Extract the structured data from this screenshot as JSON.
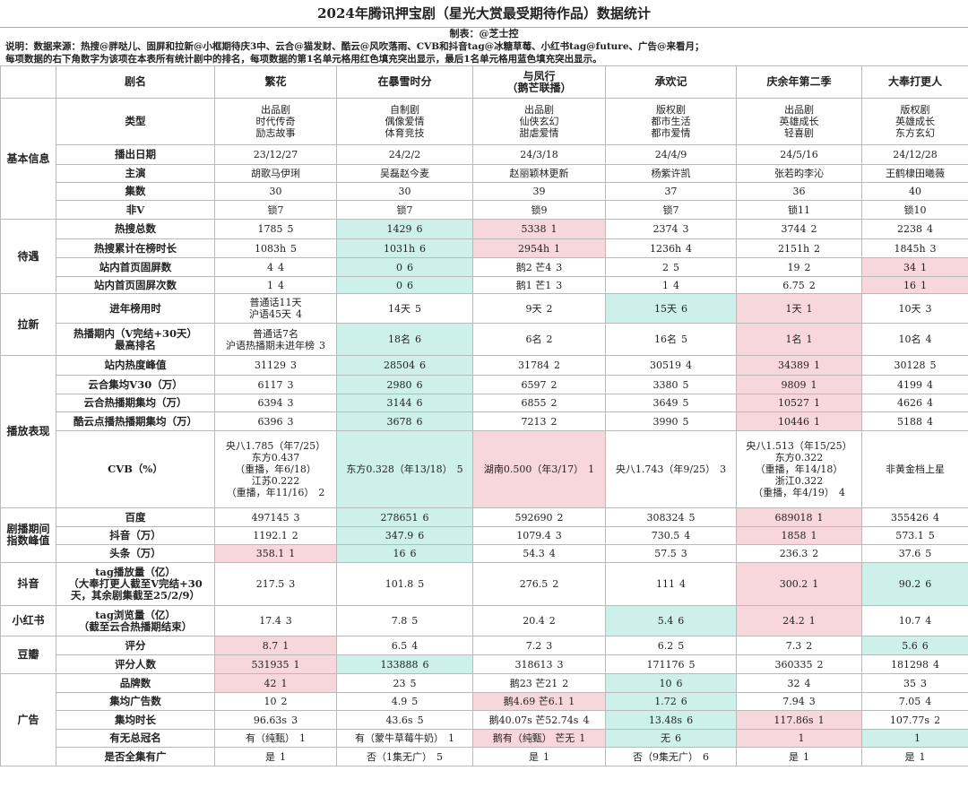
{
  "title": "2024年腾讯押宝剧（星光大赏最受期待作品）数据统计",
  "maker": "制表：@芝士控",
  "note_lines": [
    "说明：数据来源：热搜@胖哒儿、固屏和拉新@小框期待庆3中、云合@猫发财、酷云@风吹落雨、CVB和抖音tag@冰糖草莓、小红书tag@future、广告@来看月；",
    "每项数据的右下角数字为该项在本表所有统计剧中的排名，每项数据的第1名单元格用红色填充突出显示，最后1名单元格用蓝色填充突出显示。"
  ],
  "colors": {
    "first_place": "#f8d7dc",
    "last_place": "#cdf0eb"
  },
  "header": {
    "label": "剧名",
    "dramas": [
      "繁花",
      "在暴雪时分",
      "与凤行\n（鹅芒联播）",
      "承欢记",
      "庆余年第二季",
      "大奉打更人"
    ]
  },
  "groups": [
    {
      "name": "基本信息",
      "rows": [
        {
          "label": "类型",
          "cells": [
            {
              "v": "出品剧\n时代传奇\n励志故事"
            },
            {
              "v": "自制剧\n偶像爱情\n体育竞技"
            },
            {
              "v": "出品剧\n仙侠玄幻\n甜虐爱情"
            },
            {
              "v": "版权剧\n都市生活\n都市爱情"
            },
            {
              "v": "出品剧\n英雄成长\n轻喜剧"
            },
            {
              "v": "版权剧\n英雄成长\n东方玄幻"
            }
          ]
        },
        {
          "label": "播出日期",
          "cells": [
            {
              "v": "23/12/27"
            },
            {
              "v": "24/2/2"
            },
            {
              "v": "24/3/18"
            },
            {
              "v": "24/4/9"
            },
            {
              "v": "24/5/16"
            },
            {
              "v": "24/12/28"
            }
          ]
        },
        {
          "label": "主演",
          "cells": [
            {
              "v": "胡歌马伊琍"
            },
            {
              "v": "吴磊赵今麦"
            },
            {
              "v": "赵丽颖林更新"
            },
            {
              "v": "杨紫许凯"
            },
            {
              "v": "张若昀李沁"
            },
            {
              "v": "王鹤棣田曦薇"
            }
          ]
        },
        {
          "label": "集数",
          "cells": [
            {
              "v": "30"
            },
            {
              "v": "30"
            },
            {
              "v": "39"
            },
            {
              "v": "37"
            },
            {
              "v": "36"
            },
            {
              "v": "40"
            }
          ]
        },
        {
          "label": "非V",
          "cells": [
            {
              "v": "锁7"
            },
            {
              "v": "锁7"
            },
            {
              "v": "锁9"
            },
            {
              "v": "锁7"
            },
            {
              "v": "锁11"
            },
            {
              "v": "锁10"
            }
          ]
        }
      ]
    },
    {
      "name": "待遇",
      "rows": [
        {
          "label": "热搜总数",
          "cells": [
            {
              "v": "1785",
              "r": "5"
            },
            {
              "v": "1429",
              "r": "6",
              "c": "blue"
            },
            {
              "v": "5338",
              "r": "1",
              "c": "red"
            },
            {
              "v": "2374",
              "r": "3"
            },
            {
              "v": "3744",
              "r": "2"
            },
            {
              "v": "2238",
              "r": "4"
            }
          ]
        },
        {
          "label": "热搜累计在榜时长",
          "cells": [
            {
              "v": "1083h",
              "r": "5"
            },
            {
              "v": "1031h",
              "r": "6",
              "c": "blue"
            },
            {
              "v": "2954h",
              "r": "1",
              "c": "red"
            },
            {
              "v": "1236h",
              "r": "4"
            },
            {
              "v": "2151h",
              "r": "2"
            },
            {
              "v": "1845h",
              "r": "3"
            }
          ]
        },
        {
          "label": "站内首页固屏数",
          "cells": [
            {
              "v": "4",
              "r": "4"
            },
            {
              "v": "0",
              "r": "6",
              "c": "blue"
            },
            {
              "v": "鹅2 芒4",
              "r": "3"
            },
            {
              "v": "2",
              "r": "5"
            },
            {
              "v": "19",
              "r": "2"
            },
            {
              "v": "34",
              "r": "1",
              "c": "red"
            }
          ]
        },
        {
          "label": "站内首页固屏次数",
          "cells": [
            {
              "v": "1",
              "r": "4"
            },
            {
              "v": "0",
              "r": "6",
              "c": "blue"
            },
            {
              "v": "鹅1 芒1",
              "r": "3"
            },
            {
              "v": "1",
              "r": "4"
            },
            {
              "v": "6.75",
              "r": "2"
            },
            {
              "v": "16",
              "r": "1",
              "c": "red"
            }
          ]
        }
      ]
    },
    {
      "name": "拉新",
      "rows": [
        {
          "label": "进年榜用时",
          "cells": [
            {
              "v": "普通话11天\n沪语45天",
              "r": "4"
            },
            {
              "v": "14天",
              "r": "5"
            },
            {
              "v": "9天",
              "r": "2"
            },
            {
              "v": "15天",
              "r": "6",
              "c": "blue"
            },
            {
              "v": "1天",
              "r": "1",
              "c": "red"
            },
            {
              "v": "10天",
              "r": "3"
            }
          ]
        },
        {
          "label": "热播期内（V完结+30天）\n最高排名",
          "cells": [
            {
              "v": "普通话7名\n沪语热播期未进年榜",
              "r": "3"
            },
            {
              "v": "18名",
              "r": "6",
              "c": "blue"
            },
            {
              "v": "6名",
              "r": "2"
            },
            {
              "v": "16名",
              "r": "5"
            },
            {
              "v": "1名",
              "r": "1",
              "c": "red"
            },
            {
              "v": "10名",
              "r": "4"
            }
          ]
        }
      ]
    },
    {
      "name": "播放表现",
      "rows": [
        {
          "label": "站内热度峰值",
          "cells": [
            {
              "v": "31129",
              "r": "3"
            },
            {
              "v": "28504",
              "r": "6",
              "c": "blue"
            },
            {
              "v": "31784",
              "r": "2"
            },
            {
              "v": "30519",
              "r": "4"
            },
            {
              "v": "34389",
              "r": "1",
              "c": "red"
            },
            {
              "v": "30128",
              "r": "5"
            }
          ]
        },
        {
          "label": "云合集均V30（万）",
          "cells": [
            {
              "v": "6117",
              "r": "3"
            },
            {
              "v": "2980",
              "r": "6",
              "c": "blue"
            },
            {
              "v": "6597",
              "r": "2"
            },
            {
              "v": "3380",
              "r": "5"
            },
            {
              "v": "9809",
              "r": "1",
              "c": "red"
            },
            {
              "v": "4199",
              "r": "4"
            }
          ]
        },
        {
          "label": "云合热播期集均（万）",
          "cells": [
            {
              "v": "6394",
              "r": "3"
            },
            {
              "v": "3144",
              "r": "6",
              "c": "blue"
            },
            {
              "v": "6855",
              "r": "2"
            },
            {
              "v": "3649",
              "r": "5"
            },
            {
              "v": "10527",
              "r": "1",
              "c": "red"
            },
            {
              "v": "4626",
              "r": "4"
            }
          ]
        },
        {
          "label": "酷云点播热播期集均（万）",
          "cells": [
            {
              "v": "6396",
              "r": "3"
            },
            {
              "v": "3678",
              "r": "6",
              "c": "blue"
            },
            {
              "v": "7213",
              "r": "2"
            },
            {
              "v": "3990",
              "r": "5"
            },
            {
              "v": "10446",
              "r": "1",
              "c": "red"
            },
            {
              "v": "5188",
              "r": "4"
            }
          ]
        },
        {
          "label": "CVB（%）",
          "cells": [
            {
              "v": "央八1.785（年7/25）\n东方0.437\n（重播，年6/18）\n江苏0.222\n（重播，年11/16）",
              "r": "2"
            },
            {
              "v": "东方0.328（年13/18）",
              "r": "5",
              "c": "blue"
            },
            {
              "v": "湖南0.500（年3/17）",
              "r": "1",
              "c": "red"
            },
            {
              "v": "央八1.743（年9/25）",
              "r": "3"
            },
            {
              "v": "央八1.513（年15/25）\n东方0.322\n（重播，年14/18）\n浙江0.322\n（重播，年4/19）",
              "r": "4"
            },
            {
              "v": "非黄金档上星"
            }
          ]
        }
      ]
    },
    {
      "name": "剧播期间\n指数峰值",
      "rows": [
        {
          "label": "百度",
          "cells": [
            {
              "v": "497145",
              "r": "3"
            },
            {
              "v": "278651",
              "r": "6",
              "c": "blue"
            },
            {
              "v": "592690",
              "r": "2"
            },
            {
              "v": "308324",
              "r": "5"
            },
            {
              "v": "689018",
              "r": "1",
              "c": "red"
            },
            {
              "v": "355426",
              "r": "4"
            }
          ]
        },
        {
          "label": "抖音（万）",
          "cells": [
            {
              "v": "1192.1",
              "r": "2"
            },
            {
              "v": "347.9",
              "r": "6",
              "c": "blue"
            },
            {
              "v": "1079.4",
              "r": "3"
            },
            {
              "v": "730.5",
              "r": "4"
            },
            {
              "v": "1858",
              "r": "1",
              "c": "red"
            },
            {
              "v": "573.1",
              "r": "5"
            }
          ]
        },
        {
          "label": "头条（万）",
          "cells": [
            {
              "v": "358.1",
              "r": "1",
              "c": "red"
            },
            {
              "v": "16",
              "r": "6",
              "c": "blue"
            },
            {
              "v": "54.3",
              "r": "4"
            },
            {
              "v": "57.5",
              "r": "3"
            },
            {
              "v": "236.3",
              "r": "2"
            },
            {
              "v": "37.6",
              "r": "5"
            }
          ]
        }
      ]
    },
    {
      "name": "抖音",
      "rows": [
        {
          "label": "tag播放量（亿）\n（大奉打更人截至V完结+30\n天，其余剧集截至25/2/9）",
          "cells": [
            {
              "v": "217.5",
              "r": "3"
            },
            {
              "v": "101.8",
              "r": "5"
            },
            {
              "v": "276.5",
              "r": "2"
            },
            {
              "v": "111",
              "r": "4"
            },
            {
              "v": "300.2",
              "r": "1",
              "c": "red"
            },
            {
              "v": "90.2",
              "r": "6",
              "c": "blue"
            }
          ]
        }
      ]
    },
    {
      "name": "小红书",
      "rows": [
        {
          "label": "tag浏览量（亿）\n（截至云合热播期结束）",
          "cells": [
            {
              "v": "17.4",
              "r": "3"
            },
            {
              "v": "7.8",
              "r": "5"
            },
            {
              "v": "20.4",
              "r": "2"
            },
            {
              "v": "5.4",
              "r": "6",
              "c": "blue"
            },
            {
              "v": "24.2",
              "r": "1",
              "c": "red"
            },
            {
              "v": "10.7",
              "r": "4"
            }
          ]
        }
      ]
    },
    {
      "name": "豆瓣",
      "rows": [
        {
          "label": "评分",
          "cells": [
            {
              "v": "8.7",
              "r": "1",
              "c": "red"
            },
            {
              "v": "6.5",
              "r": "4"
            },
            {
              "v": "7.2",
              "r": "3"
            },
            {
              "v": "6.2",
              "r": "5"
            },
            {
              "v": "7.3",
              "r": "2"
            },
            {
              "v": "5.6",
              "r": "6",
              "c": "blue"
            }
          ]
        },
        {
          "label": "评分人数",
          "cells": [
            {
              "v": "531935",
              "r": "1",
              "c": "red"
            },
            {
              "v": "133888",
              "r": "6",
              "c": "blue"
            },
            {
              "v": "318613",
              "r": "3"
            },
            {
              "v": "171176",
              "r": "5"
            },
            {
              "v": "360335",
              "r": "2"
            },
            {
              "v": "181298",
              "r": "4"
            }
          ]
        }
      ]
    },
    {
      "name": "广告",
      "rows": [
        {
          "label": "品牌数",
          "cells": [
            {
              "v": "42",
              "r": "1",
              "c": "red"
            },
            {
              "v": "23",
              "r": "5"
            },
            {
              "v": "鹅23 芒21",
              "r": "2"
            },
            {
              "v": "10",
              "r": "6",
              "c": "blue"
            },
            {
              "v": "32",
              "r": "4"
            },
            {
              "v": "35",
              "r": "3"
            }
          ]
        },
        {
          "label": "集均广告数",
          "cells": [
            {
              "v": "10",
              "r": "2"
            },
            {
              "v": "4.9",
              "r": "5"
            },
            {
              "v": "鹅4.69 芒6.1",
              "r": "1",
              "c": "red"
            },
            {
              "v": "1.72",
              "r": "6",
              "c": "blue"
            },
            {
              "v": "7.94",
              "r": "3"
            },
            {
              "v": "7.05",
              "r": "4"
            }
          ]
        },
        {
          "label": "集均时长",
          "cells": [
            {
              "v": "96.63s",
              "r": "3"
            },
            {
              "v": "43.6s",
              "r": "5"
            },
            {
              "v": "鹅40.07s 芒52.74s",
              "r": "4"
            },
            {
              "v": "13.48s",
              "r": "6",
              "c": "blue"
            },
            {
              "v": "117.86s",
              "r": "1",
              "c": "red"
            },
            {
              "v": "107.77s",
              "r": "2"
            }
          ]
        },
        {
          "label": "有无总冠名",
          "cells": [
            {
              "v": "有（纯甄）",
              "r": "1"
            },
            {
              "v": "有（蒙牛草莓牛奶）",
              "r": "1"
            },
            {
              "v": "鹅有（纯甄） 芒无",
              "r": "1",
              "c": "red"
            },
            {
              "v": "无",
              "r": "6",
              "c": "blue"
            },
            {
              "v": "",
              "r": "1",
              "c": "red"
            },
            {
              "v": "",
              "r": "1",
              "c": "blue"
            }
          ]
        },
        {
          "label": "是否全集有广",
          "cells": [
            {
              "v": "是",
              "r": "1"
            },
            {
              "v": "否（1集无广）",
              "r": "5"
            },
            {
              "v": "是",
              "r": "1"
            },
            {
              "v": "否（9集无广）",
              "r": "6"
            },
            {
              "v": "是",
              "r": "1"
            },
            {
              "v": "是",
              "r": "1"
            }
          ]
        }
      ]
    }
  ]
}
